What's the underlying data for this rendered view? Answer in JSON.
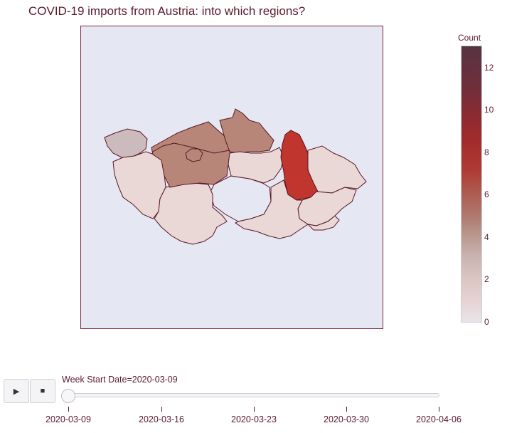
{
  "title": "COVID-19 imports from Austria: into which regions?",
  "colorbar": {
    "title": "Count",
    "ticks": [
      "12",
      "10",
      "8",
      "6",
      "4",
      "2",
      "0"
    ]
  },
  "colors": {
    "frame_bg": "#e5e8f2",
    "border": "#5a1424",
    "low": "#ead8d6",
    "high": "#c20e16"
  },
  "map": {
    "regions": [
      {
        "name": "Karlovarsky",
        "value": 3,
        "color": "#ccbbbd"
      },
      {
        "name": "Plzensky",
        "value": 1,
        "color": "#ead8d6"
      },
      {
        "name": "Ustecky",
        "value": 4,
        "color": "#b78679"
      },
      {
        "name": "Stredocesky",
        "value": 4,
        "color": "#b78679"
      },
      {
        "name": "Praha",
        "value": 4,
        "color": "#b78679"
      },
      {
        "name": "Liberecky",
        "value": 4,
        "color": "#b78679"
      },
      {
        "name": "Kralovehradecky",
        "value": 1,
        "color": "#ead8d6"
      },
      {
        "name": "Pardubicky",
        "value": 1,
        "color": "#ead8d6"
      },
      {
        "name": "Jihocesky",
        "value": 1,
        "color": "#ead8d6"
      },
      {
        "name": "Vysocina",
        "value": 0,
        "color": "#e5e8f2"
      },
      {
        "name": "Olomoucky",
        "value": 9,
        "color": "#c0352d"
      },
      {
        "name": "Moravskoslezsky",
        "value": 1,
        "color": "#ead8d6"
      },
      {
        "name": "Jihomoravsky",
        "value": 1,
        "color": "#ead8d6"
      },
      {
        "name": "Zlinsky",
        "value": 1,
        "color": "#ead8d6"
      }
    ]
  },
  "controls": {
    "play_icon": "▶",
    "stop_icon": "■"
  },
  "slider": {
    "label": "Week Start Date=2020-03-09",
    "ticks": [
      "2020-03-09",
      "2020-03-16",
      "2020-03-23",
      "2020-03-30",
      "2020-04-06"
    ],
    "current_index": 0
  }
}
